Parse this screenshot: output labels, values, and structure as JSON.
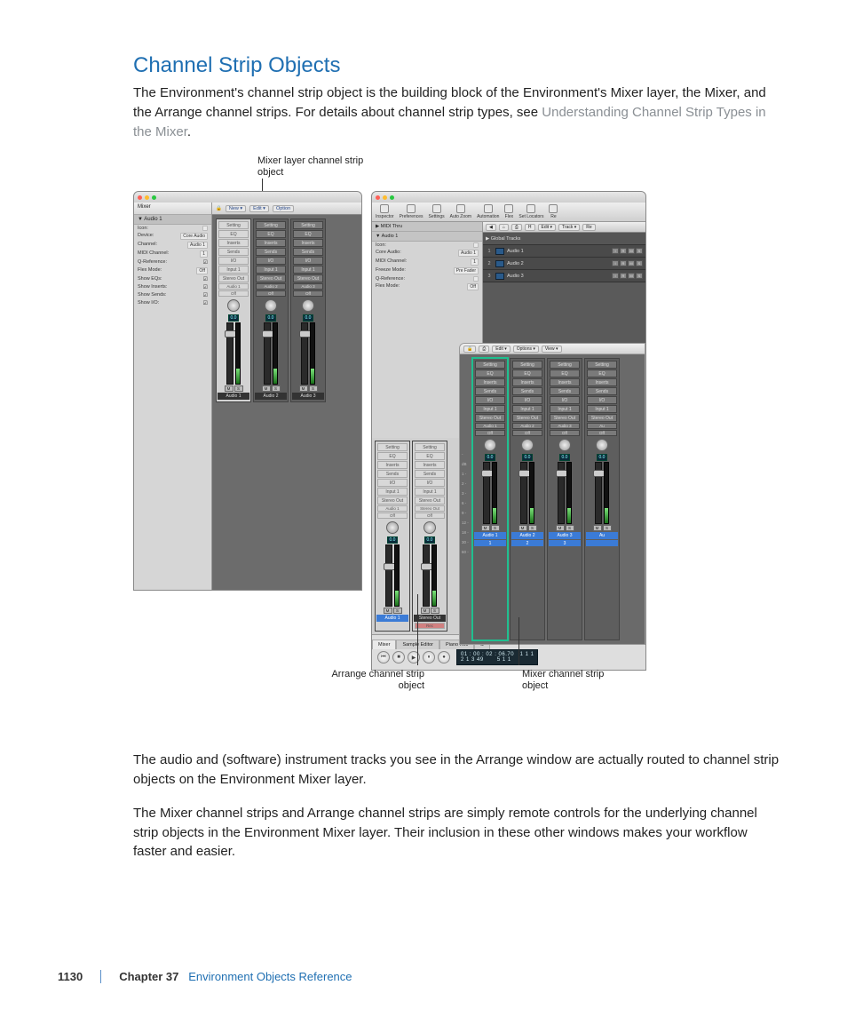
{
  "heading": "Channel Strip Objects",
  "intro_a": "The Environment's channel strip object is the building block of the Environment's Mixer layer, the Mixer, and the Arrange channel strips. For details about channel strip types, see ",
  "intro_link": "Understanding Channel Strip Types in the Mixer",
  "intro_b": ".",
  "callouts": {
    "top": "Mixer layer channel strip object",
    "bl": "Arrange channel strip object",
    "br": "Mixer channel strip object"
  },
  "para2": "The audio and (software) instrument tracks you see in the Arrange window are actually routed to channel strip objects on the Environment Mixer layer.",
  "para3": "The Mixer channel strips and Arrange channel strips are simply remote controls for the underlying channel strip objects in the Environment Mixer layer. Their inclusion in these other windows makes your workflow faster and easier.",
  "footer": {
    "page": "1130",
    "chapter": "Chapter 37",
    "name": "Environment Objects Reference"
  },
  "left_window": {
    "side_hdr": "Mixer",
    "side_sub": "▼ Audio 1",
    "params": [
      [
        "Icon:",
        ""
      ],
      [
        "Device:",
        "Core Audio"
      ],
      [
        "Channel:",
        "Audio 1"
      ],
      [
        "MIDI Channel:",
        "1"
      ],
      [
        "Q-Reference:",
        "chk"
      ],
      [
        "Flex Mode:",
        "Off"
      ],
      [
        "Show EQs:",
        "chk"
      ],
      [
        "Show Inserts:",
        "chk"
      ],
      [
        "Show Sends:",
        "chk"
      ],
      [
        "Show I/O:",
        "chk"
      ]
    ],
    "toolbar": {
      "lock": "🔒",
      "new": "New ▾",
      "edit": "Edit ▾",
      "opt": "Option"
    },
    "slots": {
      "setting": "Setting",
      "eq": "EQ",
      "inserts": "Inserts",
      "sends": "Sends",
      "io": "I/O",
      "input": "Input 1",
      "out": "Stereo Out",
      "off": "Off"
    },
    "level": "0.0",
    "labels": [
      "Audio 1",
      "Audio 2",
      "Audio 3"
    ]
  },
  "right_window": {
    "toolbar": [
      "Inspector",
      "Preferences",
      "Settings",
      "Auto Zoom",
      "Automation",
      "Flex",
      "Set Locators",
      "Re"
    ],
    "insp": {
      "midi": "▶ MIDI Thru",
      "audio": "▼ Audio 1",
      "params": [
        [
          "Icon:",
          ""
        ],
        [
          "Core Audio:",
          "Audio 1"
        ],
        [
          "MIDI Channel:",
          "1"
        ],
        [
          "Freeze Mode:",
          "Pre Fader"
        ],
        [
          "Q-Reference:",
          ""
        ],
        [
          "Flex Mode:",
          "Off"
        ]
      ]
    },
    "tracks_tb": [
      "◀",
      "⌂",
      "⎙",
      "H",
      "Edit ▾",
      "Track ▾",
      "Re"
    ],
    "global": "▶ Global Tracks",
    "tracks": [
      {
        "n": "1",
        "name": "Audio 1"
      },
      {
        "n": "2",
        "name": "Audio 2"
      },
      {
        "n": "3",
        "name": "Audio 3"
      }
    ],
    "mixer_tb": [
      "🔒",
      "⎙",
      "Edit ▾",
      "Options ▾",
      "View ▾"
    ],
    "mixer_labels": [
      "Audio 1",
      "Audio 2",
      "Audio 3",
      "Au"
    ],
    "mixer_sub": [
      "1",
      "2",
      "3",
      ""
    ],
    "insp_labels": [
      "Audio 1",
      "Stereo Out"
    ],
    "tabs": [
      "Mixer",
      "Sample Editor",
      "Piano Roll",
      "S"
    ],
    "lcd_top": "01 : 00 : 02 : 06.70",
    "lcd_bot": "2    1   3   49",
    "lcd_r1": "1    1    1",
    "lcd_r2": "5    1    1",
    "db": [
      "-",
      "dB",
      "1 -",
      "2 -",
      "3 -",
      "6 -",
      "9 -",
      "12 -",
      "18 -",
      "30 -",
      "60 -"
    ],
    "rec": "Rec"
  }
}
